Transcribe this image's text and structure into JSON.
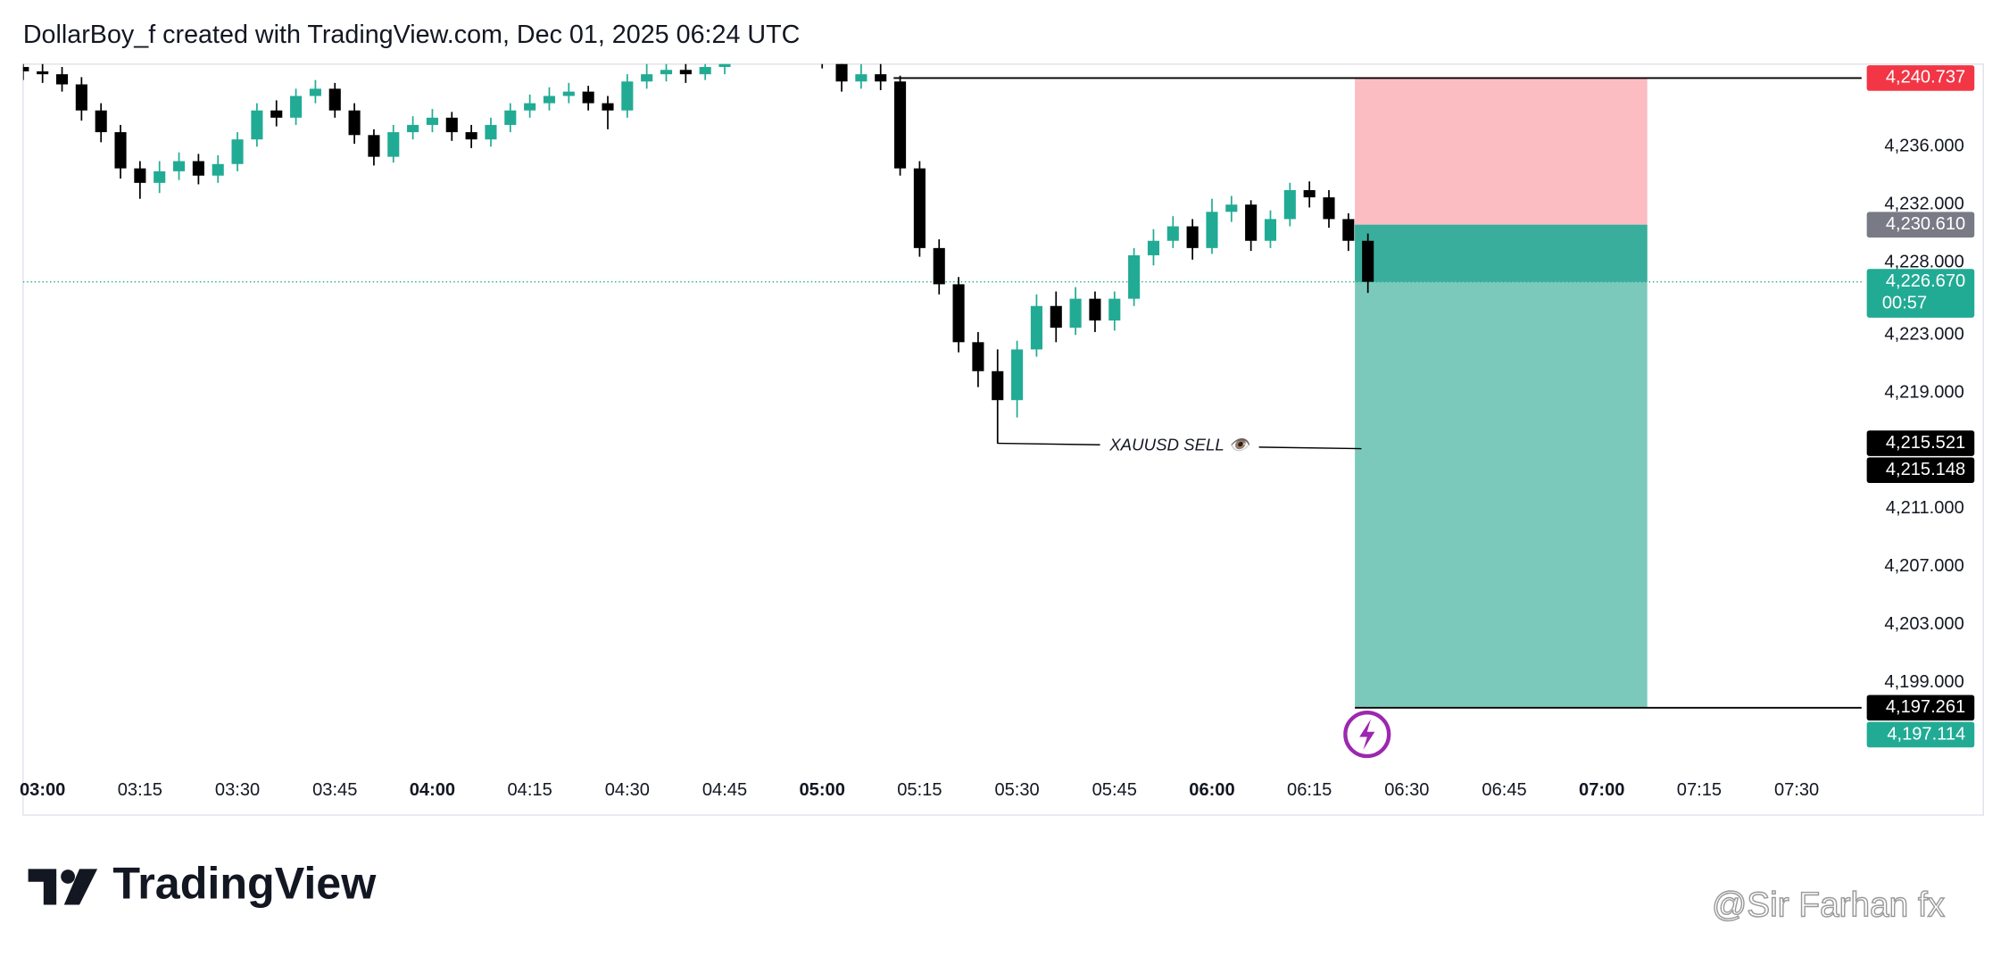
{
  "chart_data": {
    "type": "candlestick",
    "header": "DollarBoy_f created with TradingView.com, Dec 01, 2025 06:24 UTC",
    "brand": "TradingView",
    "watermark": "@Sir Farhan fx",
    "up_color": "#22ab94",
    "down_color": "#000000",
    "x": [
      "02:57",
      "03:00",
      "03:03",
      "03:06",
      "03:09",
      "03:12",
      "03:15",
      "03:18",
      "03:21",
      "03:24",
      "03:27",
      "03:30",
      "03:33",
      "03:36",
      "03:39",
      "03:42",
      "03:45",
      "03:48",
      "03:51",
      "03:54",
      "03:57",
      "04:00",
      "04:03",
      "04:06",
      "04:09",
      "04:12",
      "04:15",
      "04:18",
      "04:21",
      "04:24",
      "04:27",
      "04:30",
      "04:33",
      "04:36",
      "04:39",
      "04:42",
      "04:45",
      "04:48",
      "04:51",
      "04:54",
      "04:57",
      "05:00",
      "05:03",
      "05:06",
      "05:09",
      "05:12",
      "05:15",
      "05:18",
      "05:21",
      "05:24",
      "05:27",
      "05:30",
      "05:33",
      "05:36",
      "05:39",
      "05:42",
      "05:45",
      "05:48",
      "05:51",
      "05:54",
      "05:57",
      "06:00",
      "06:03",
      "06:06",
      "06:09",
      "06:12",
      "06:15",
      "06:18",
      "06:21",
      "06:24"
    ],
    "open": [
      4241.5,
      4241.2,
      4241.0,
      4240.3,
      4238.5,
      4237.0,
      4234.5,
      4233.5,
      4234.3,
      4235.0,
      4234.0,
      4234.8,
      4236.5,
      4238.5,
      4238.0,
      4239.5,
      4240.0,
      4238.5,
      4236.8,
      4235.3,
      4237.0,
      4237.5,
      4238.0,
      4237.0,
      4236.5,
      4237.5,
      4238.5,
      4239.0,
      4239.5,
      4239.8,
      4239.0,
      4238.5,
      4240.5,
      4241.0,
      4241.3,
      4241.0,
      4241.5,
      4242.5,
      4243.5,
      4244.0,
      4243.5,
      4243.0,
      4242.0,
      4240.5,
      4241.0,
      4240.5,
      4234.5,
      4229.0,
      4226.5,
      4222.5,
      4220.5,
      4218.5,
      4222.0,
      4225.0,
      4223.5,
      4225.5,
      4224.0,
      4225.5,
      4228.5,
      4229.5,
      4230.5,
      4229.0,
      4231.5,
      4232.0,
      4229.5,
      4231.0,
      4233.0,
      4232.5,
      4231.0,
      4229.5
    ],
    "high": [
      4242.0,
      4241.8,
      4241.5,
      4240.8,
      4239.0,
      4237.5,
      4235.0,
      4235.0,
      4235.6,
      4235.5,
      4235.4,
      4237.0,
      4239.0,
      4239.2,
      4240.0,
      4240.6,
      4240.4,
      4239.0,
      4237.2,
      4237.5,
      4238.1,
      4238.6,
      4238.4,
      4237.5,
      4238.0,
      4239.0,
      4239.6,
      4240.1,
      4240.4,
      4240.2,
      4239.5,
      4241.0,
      4241.8,
      4241.9,
      4241.8,
      4242.2,
      4243.0,
      4244.0,
      4244.6,
      4244.5,
      4244.0,
      4243.4,
      4242.5,
      4241.7,
      4241.8,
      4240.9,
      4235.0,
      4229.6,
      4227.0,
      4223.2,
      4222.0,
      4222.6,
      4225.8,
      4226.0,
      4226.3,
      4226.0,
      4226.0,
      4229.0,
      4230.3,
      4231.2,
      4231.0,
      4232.4,
      4232.6,
      4232.3,
      4231.6,
      4233.5,
      4233.6,
      4233.0,
      4231.4,
      4230.0
    ],
    "low": [
      4240.6,
      4240.4,
      4239.8,
      4237.8,
      4236.3,
      4233.8,
      4232.4,
      4232.8,
      4233.7,
      4233.4,
      4233.5,
      4234.3,
      4236.0,
      4237.4,
      4237.5,
      4239.0,
      4238.0,
      4236.2,
      4234.7,
      4234.9,
      4236.5,
      4237.0,
      4236.4,
      4235.9,
      4236.0,
      4237.0,
      4238.0,
      4238.5,
      4239.0,
      4238.5,
      4237.2,
      4238.0,
      4240.0,
      4240.5,
      4240.4,
      4240.6,
      4241.0,
      4242.0,
      4243.0,
      4243.0,
      4242.4,
      4241.4,
      4239.8,
      4240.0,
      4239.9,
      4234.0,
      4228.4,
      4225.8,
      4221.8,
      4219.4,
      4215.5,
      4217.3,
      4221.5,
      4222.5,
      4223.0,
      4223.2,
      4223.3,
      4225.0,
      4227.8,
      4229.0,
      4228.2,
      4228.6,
      4230.8,
      4228.8,
      4229.0,
      4230.5,
      4231.8,
      4230.4,
      4228.8,
      4225.9
    ],
    "close": [
      4241.2,
      4241.0,
      4240.3,
      4238.5,
      4237.0,
      4234.5,
      4233.5,
      4234.3,
      4235.0,
      4234.0,
      4234.8,
      4236.5,
      4238.5,
      4238.0,
      4239.5,
      4240.0,
      4238.5,
      4236.8,
      4235.3,
      4237.0,
      4237.5,
      4238.0,
      4237.0,
      4236.5,
      4237.5,
      4238.5,
      4239.0,
      4239.5,
      4239.8,
      4239.0,
      4238.5,
      4240.5,
      4241.0,
      4241.3,
      4241.0,
      4241.5,
      4242.5,
      4243.5,
      4244.0,
      4243.5,
      4243.0,
      4242.0,
      4240.5,
      4241.0,
      4240.5,
      4234.5,
      4229.0,
      4226.5,
      4222.5,
      4220.5,
      4218.5,
      4222.0,
      4225.0,
      4223.5,
      4225.5,
      4224.0,
      4225.5,
      4228.5,
      4229.5,
      4230.5,
      4229.0,
      4231.5,
      4232.0,
      4229.5,
      4231.0,
      4233.0,
      4232.5,
      4231.0,
      4229.5,
      4226.67
    ],
    "xlim": [
      "02:57",
      "07:40"
    ],
    "xticks": [
      "03:00",
      "03:15",
      "03:30",
      "03:45",
      "04:00",
      "04:15",
      "04:30",
      "04:45",
      "05:00",
      "05:15",
      "05:30",
      "05:45",
      "06:00",
      "06:15",
      "06:30",
      "06:45",
      "07:00",
      "07:15",
      "07:30"
    ],
    "ylim": [
      4193.3,
      4241.7
    ],
    "yticks": [
      {
        "value": 4236,
        "label": "4,236.000"
      },
      {
        "value": 4232,
        "label": "4,232.000"
      },
      {
        "value": 4228,
        "label": "4,228.000"
      },
      {
        "value": 4223,
        "label": "4,223.000"
      },
      {
        "value": 4219,
        "label": "4,219.000"
      },
      {
        "value": 4211,
        "label": "4,211.000"
      },
      {
        "value": 4207,
        "label": "4,207.000"
      },
      {
        "value": 4203,
        "label": "4,203.000"
      },
      {
        "value": 4199,
        "label": "4,199.000"
      }
    ],
    "position": {
      "stop": 4240.737,
      "entry": 4230.61,
      "target": 4197.261,
      "start": "06:22",
      "end": "07:07",
      "stop_color": "#fbbcc2",
      "target_color": "#7bc9ba",
      "active_color": "#3aae9c"
    },
    "stop_line_start": "05:11",
    "annotation": {
      "text": "XAUUSD SELL 👁️",
      "start_x": "05:27",
      "start_y": 4215.521,
      "end_x": "06:23",
      "end_y": 4215.148
    },
    "price_labels": [
      {
        "value": 4240.737,
        "label": "4,240.737",
        "color": "#f23645"
      },
      {
        "value": 4230.61,
        "label": "4,230.610",
        "color": "#787b86"
      },
      {
        "value": 4226.67,
        "label": "4,226.670",
        "color": "#22ab94",
        "countdown": "00:57"
      },
      {
        "value": 4215.521,
        "label": "4,215.521",
        "color": "#000000"
      },
      {
        "value": 4215.148,
        "label": "4,215.148",
        "color": "#000000"
      },
      {
        "value": 4197.261,
        "label": "4,197.261",
        "color": "#000000"
      },
      {
        "value": 4197.114,
        "label": "4,197.114",
        "color": "#22ab94"
      }
    ]
  }
}
